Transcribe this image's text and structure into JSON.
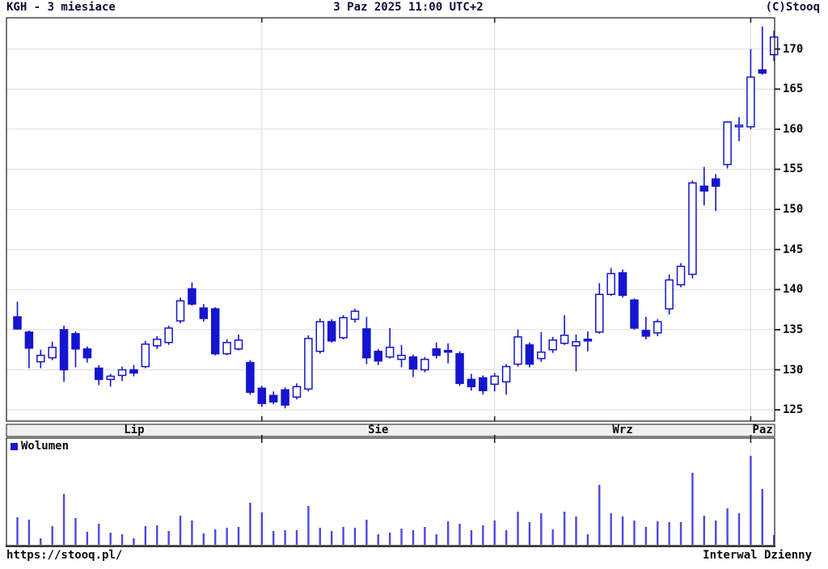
{
  "header": {
    "left": "KGH - 3 miesiace",
    "center": "3 Paz 2025 11:00 UTC+2",
    "right": "(C)Stooq"
  },
  "footer": {
    "left": "https://stooq.pl/",
    "right": "Interwal Dzienny"
  },
  "volume_legend": {
    "label": "Wolumen"
  },
  "colors": {
    "candle": "#1515cf",
    "volume_bar": "#4a4ae0",
    "grid": "#dcdcdc",
    "panel_border": "#1a1a1a",
    "strip_bg": "#f0f0f0",
    "header_text": "#0d0d38",
    "text": "#0a0a0a",
    "background": "#ffffff"
  },
  "chart_data": {
    "type": "candlestick",
    "instrument": "KGH",
    "range_label": "3 miesiace",
    "timestamp": "3 Paz 2025 11:00 UTC+2",
    "interval_label": "Interwal Dzienny",
    "legend": [
      "Wolumen"
    ],
    "y_axis": {
      "ticks": [
        125,
        130,
        135,
        140,
        145,
        150,
        155,
        160,
        165,
        170
      ],
      "min": 123.6,
      "max": 173.9
    },
    "months": [
      {
        "label": "Lip",
        "start_index": 0
      },
      {
        "label": "Sie",
        "start_index": 21
      },
      {
        "label": "Wrz",
        "start_index": 41
      },
      {
        "label": "Paz",
        "start_index": 63
      }
    ],
    "ohlc_format": [
      "open",
      "high",
      "low",
      "close"
    ],
    "ohlc": [
      [
        136.6,
        138.5,
        135.0,
        135.1
      ],
      [
        134.7,
        134.9,
        130.2,
        132.7
      ],
      [
        131.0,
        132.5,
        130.2,
        131.8
      ],
      [
        131.5,
        133.5,
        131.2,
        132.8
      ],
      [
        135.0,
        135.5,
        128.5,
        130.0
      ],
      [
        134.5,
        134.8,
        130.3,
        132.6
      ],
      [
        132.6,
        132.9,
        130.9,
        131.5
      ],
      [
        130.2,
        130.6,
        128.1,
        128.8
      ],
      [
        128.8,
        129.5,
        127.9,
        129.2
      ],
      [
        129.3,
        130.4,
        128.6,
        130.0
      ],
      [
        130.0,
        130.6,
        129.2,
        129.6
      ],
      [
        130.4,
        133.6,
        130.2,
        133.2
      ],
      [
        133.0,
        134.2,
        132.6,
        133.8
      ],
      [
        133.4,
        135.5,
        133.1,
        135.2
      ],
      [
        136.1,
        139.0,
        135.8,
        138.6
      ],
      [
        140.1,
        140.9,
        138.0,
        138.2
      ],
      [
        137.7,
        138.2,
        136.0,
        136.4
      ],
      [
        137.6,
        137.8,
        131.8,
        132.0
      ],
      [
        132.0,
        133.8,
        131.8,
        133.4
      ],
      [
        132.6,
        134.4,
        132.4,
        133.7
      ],
      [
        130.9,
        131.2,
        126.9,
        127.2
      ],
      [
        127.7,
        128.0,
        125.4,
        125.8
      ],
      [
        126.8,
        127.3,
        125.7,
        126.0
      ],
      [
        127.5,
        127.8,
        125.2,
        125.6
      ],
      [
        126.6,
        128.3,
        126.3,
        127.9
      ],
      [
        127.6,
        134.3,
        127.3,
        133.9
      ],
      [
        132.3,
        136.4,
        132.0,
        136.0
      ],
      [
        136.0,
        136.3,
        133.4,
        133.6
      ],
      [
        134.0,
        136.8,
        133.8,
        136.5
      ],
      [
        136.3,
        137.6,
        135.9,
        137.3
      ],
      [
        135.1,
        136.6,
        130.7,
        131.5
      ],
      [
        132.3,
        132.6,
        130.6,
        131.1
      ],
      [
        131.6,
        135.2,
        131.4,
        132.8
      ],
      [
        131.3,
        133.1,
        130.3,
        131.8
      ],
      [
        131.6,
        131.9,
        129.1,
        130.1
      ],
      [
        130.0,
        131.6,
        129.7,
        131.3
      ],
      [
        132.6,
        133.4,
        131.4,
        131.8
      ],
      [
        132.4,
        133.3,
        130.8,
        132.2
      ],
      [
        132.0,
        132.3,
        128.0,
        128.3
      ],
      [
        128.8,
        129.5,
        127.4,
        127.9
      ],
      [
        129.0,
        129.3,
        126.9,
        127.4
      ],
      [
        128.2,
        129.6,
        127.3,
        129.2
      ],
      [
        128.5,
        130.7,
        126.9,
        130.4
      ],
      [
        130.7,
        135.0,
        130.4,
        134.1
      ],
      [
        133.1,
        133.4,
        130.3,
        130.7
      ],
      [
        131.4,
        134.7,
        131.0,
        132.2
      ],
      [
        132.5,
        134.1,
        132.1,
        133.7
      ],
      [
        133.3,
        136.8,
        133.1,
        134.3
      ],
      [
        133.0,
        134.4,
        129.8,
        133.5
      ],
      [
        133.8,
        134.8,
        132.3,
        133.6
      ],
      [
        134.7,
        140.8,
        134.5,
        139.4
      ],
      [
        139.4,
        142.7,
        139.2,
        142.0
      ],
      [
        142.1,
        142.5,
        139.0,
        139.3
      ],
      [
        138.7,
        138.9,
        135.0,
        135.2
      ],
      [
        134.9,
        136.6,
        133.8,
        134.2
      ],
      [
        134.6,
        136.3,
        134.2,
        136.0
      ],
      [
        137.6,
        141.9,
        136.9,
        141.2
      ],
      [
        140.6,
        143.3,
        140.3,
        142.9
      ],
      [
        141.9,
        153.6,
        141.4,
        153.3
      ],
      [
        152.9,
        155.3,
        150.5,
        152.3
      ],
      [
        153.8,
        154.4,
        149.8,
        152.9
      ],
      [
        155.6,
        161.0,
        155.1,
        160.9
      ],
      [
        160.3,
        161.5,
        158.5,
        160.5
      ],
      [
        160.3,
        170.0,
        160.0,
        166.5
      ],
      [
        167.4,
        172.8,
        166.8,
        167.0
      ],
      [
        169.3,
        172.3,
        168.5,
        171.5
      ]
    ],
    "volume_scale": "relative-height",
    "volume_relative": [
      34,
      31,
      8,
      23,
      63,
      33,
      16,
      26,
      15,
      13,
      8,
      23,
      24,
      17,
      36,
      30,
      14,
      19,
      21,
      22,
      52,
      40,
      17,
      18,
      18,
      48,
      21,
      17,
      22,
      21,
      31,
      13,
      15,
      20,
      18,
      22,
      13,
      29,
      26,
      18,
      24,
      30,
      18,
      41,
      28,
      39,
      19,
      41,
      35,
      13,
      74,
      39,
      35,
      30,
      22,
      29,
      28,
      28,
      89,
      36,
      30,
      45,
      39,
      110,
      69,
      12
    ]
  }
}
